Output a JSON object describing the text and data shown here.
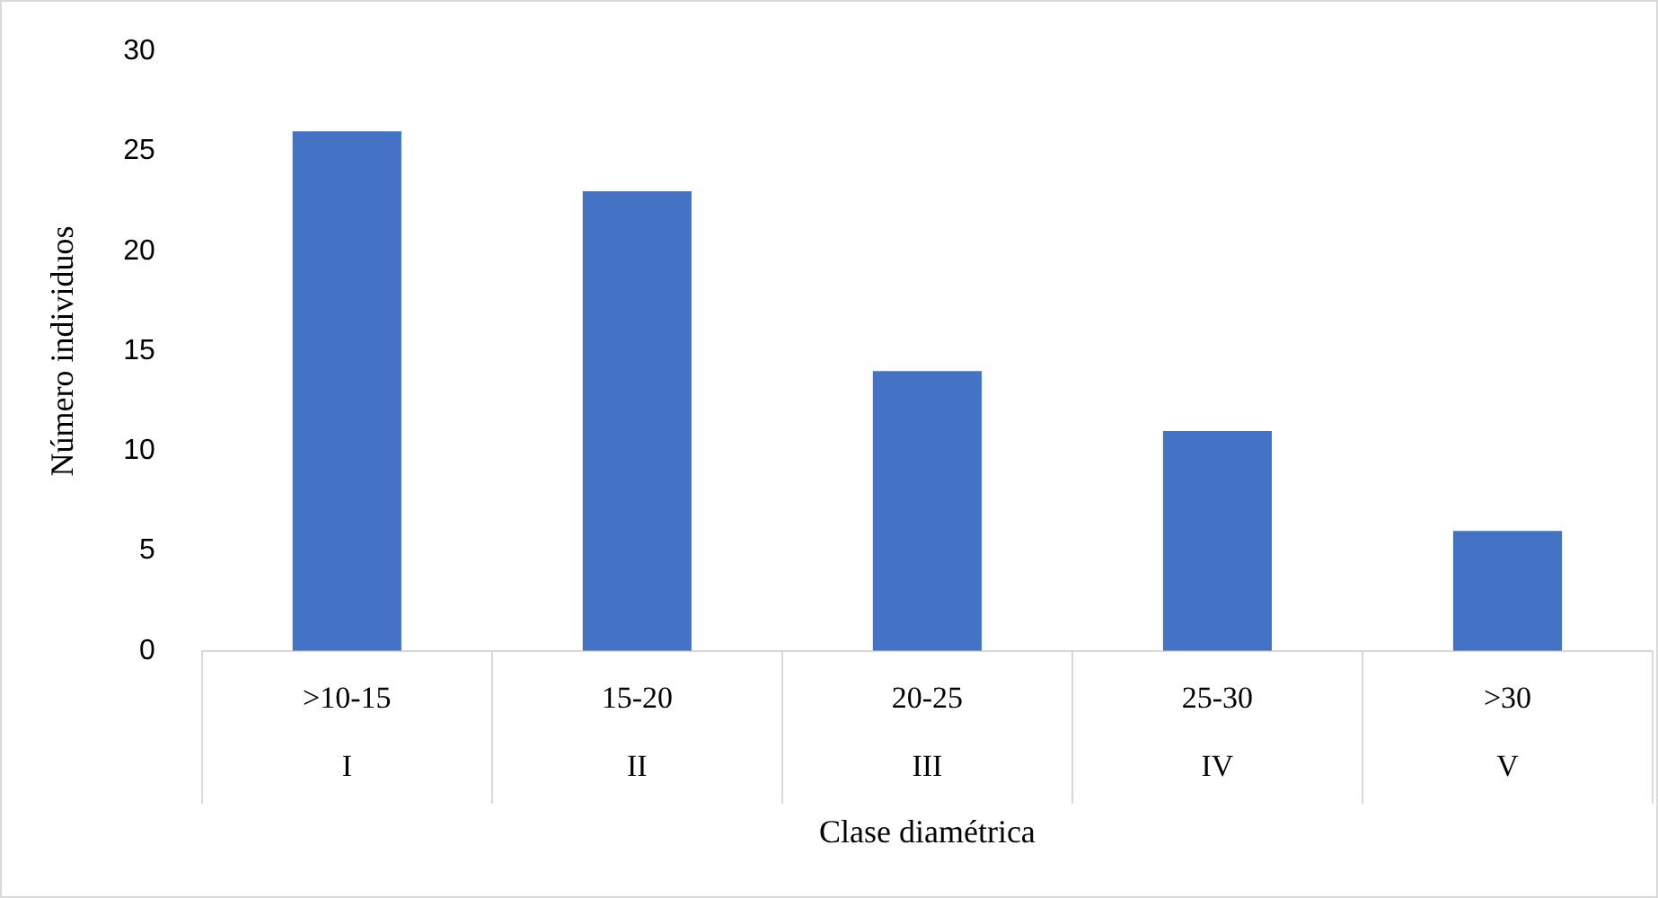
{
  "chart_data": {
    "type": "bar",
    "xlabel": "Clase diamétrica",
    "ylabel": "Número individuos",
    "categories": [
      ">10-15\nI",
      "15-20\nII",
      "20-25\nIII",
      "25-30\nIV",
      ">30\nV"
    ],
    "values": [
      26,
      23,
      14,
      11,
      6
    ],
    "color": "#4472c4",
    "ylim": [
      0,
      30
    ],
    "yticks": [
      0,
      5,
      10,
      15,
      20,
      25,
      30
    ],
    "grid": false,
    "legend": false
  }
}
